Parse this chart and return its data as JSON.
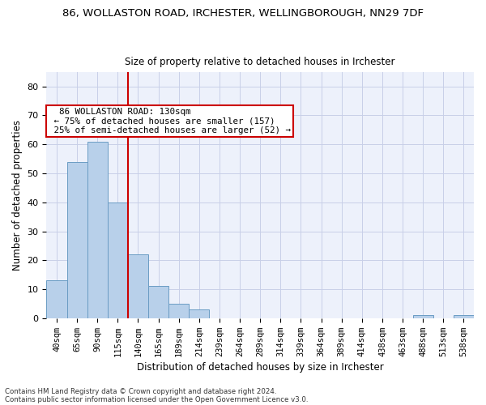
{
  "title": "86, WOLLASTON ROAD, IRCHESTER, WELLINGBOROUGH, NN29 7DF",
  "subtitle": "Size of property relative to detached houses in Irchester",
  "xlabel": "Distribution of detached houses by size in Irchester",
  "ylabel": "Number of detached properties",
  "bar_color": "#b8d0ea",
  "bar_edge_color": "#6a9cc4",
  "bin_labels": [
    "40sqm",
    "65sqm",
    "90sqm",
    "115sqm",
    "140sqm",
    "165sqm",
    "189sqm",
    "214sqm",
    "239sqm",
    "264sqm",
    "289sqm",
    "314sqm",
    "339sqm",
    "364sqm",
    "389sqm",
    "414sqm",
    "438sqm",
    "463sqm",
    "488sqm",
    "513sqm",
    "538sqm"
  ],
  "bin_values": [
    13,
    54,
    61,
    40,
    22,
    11,
    5,
    3,
    0,
    0,
    0,
    0,
    0,
    0,
    0,
    0,
    0,
    0,
    1,
    0,
    1
  ],
  "ylim": [
    0,
    85
  ],
  "yticks": [
    0,
    10,
    20,
    30,
    40,
    50,
    60,
    70,
    80
  ],
  "property_line_color": "#cc0000",
  "property_line_bin": 3.5,
  "annotation_text": "  86 WOLLASTON ROAD: 130sqm  \n ← 75% of detached houses are smaller (157)\n 25% of semi-detached houses are larger (52) →",
  "annotation_box_color": "#cc0000",
  "footer_line1": "Contains HM Land Registry data © Crown copyright and database right 2024.",
  "footer_line2": "Contains public sector information licensed under the Open Government Licence v3.0.",
  "background_color": "#edf1fb",
  "grid_color": "#c8cfe8",
  "title_fontsize": 9.5,
  "subtitle_fontsize": 8.5,
  "ylabel_fontsize": 8.5,
  "xlabel_fontsize": 8.5,
  "tick_fontsize": 7.5,
  "footer_fontsize": 6.2,
  "annot_fontsize": 7.8
}
